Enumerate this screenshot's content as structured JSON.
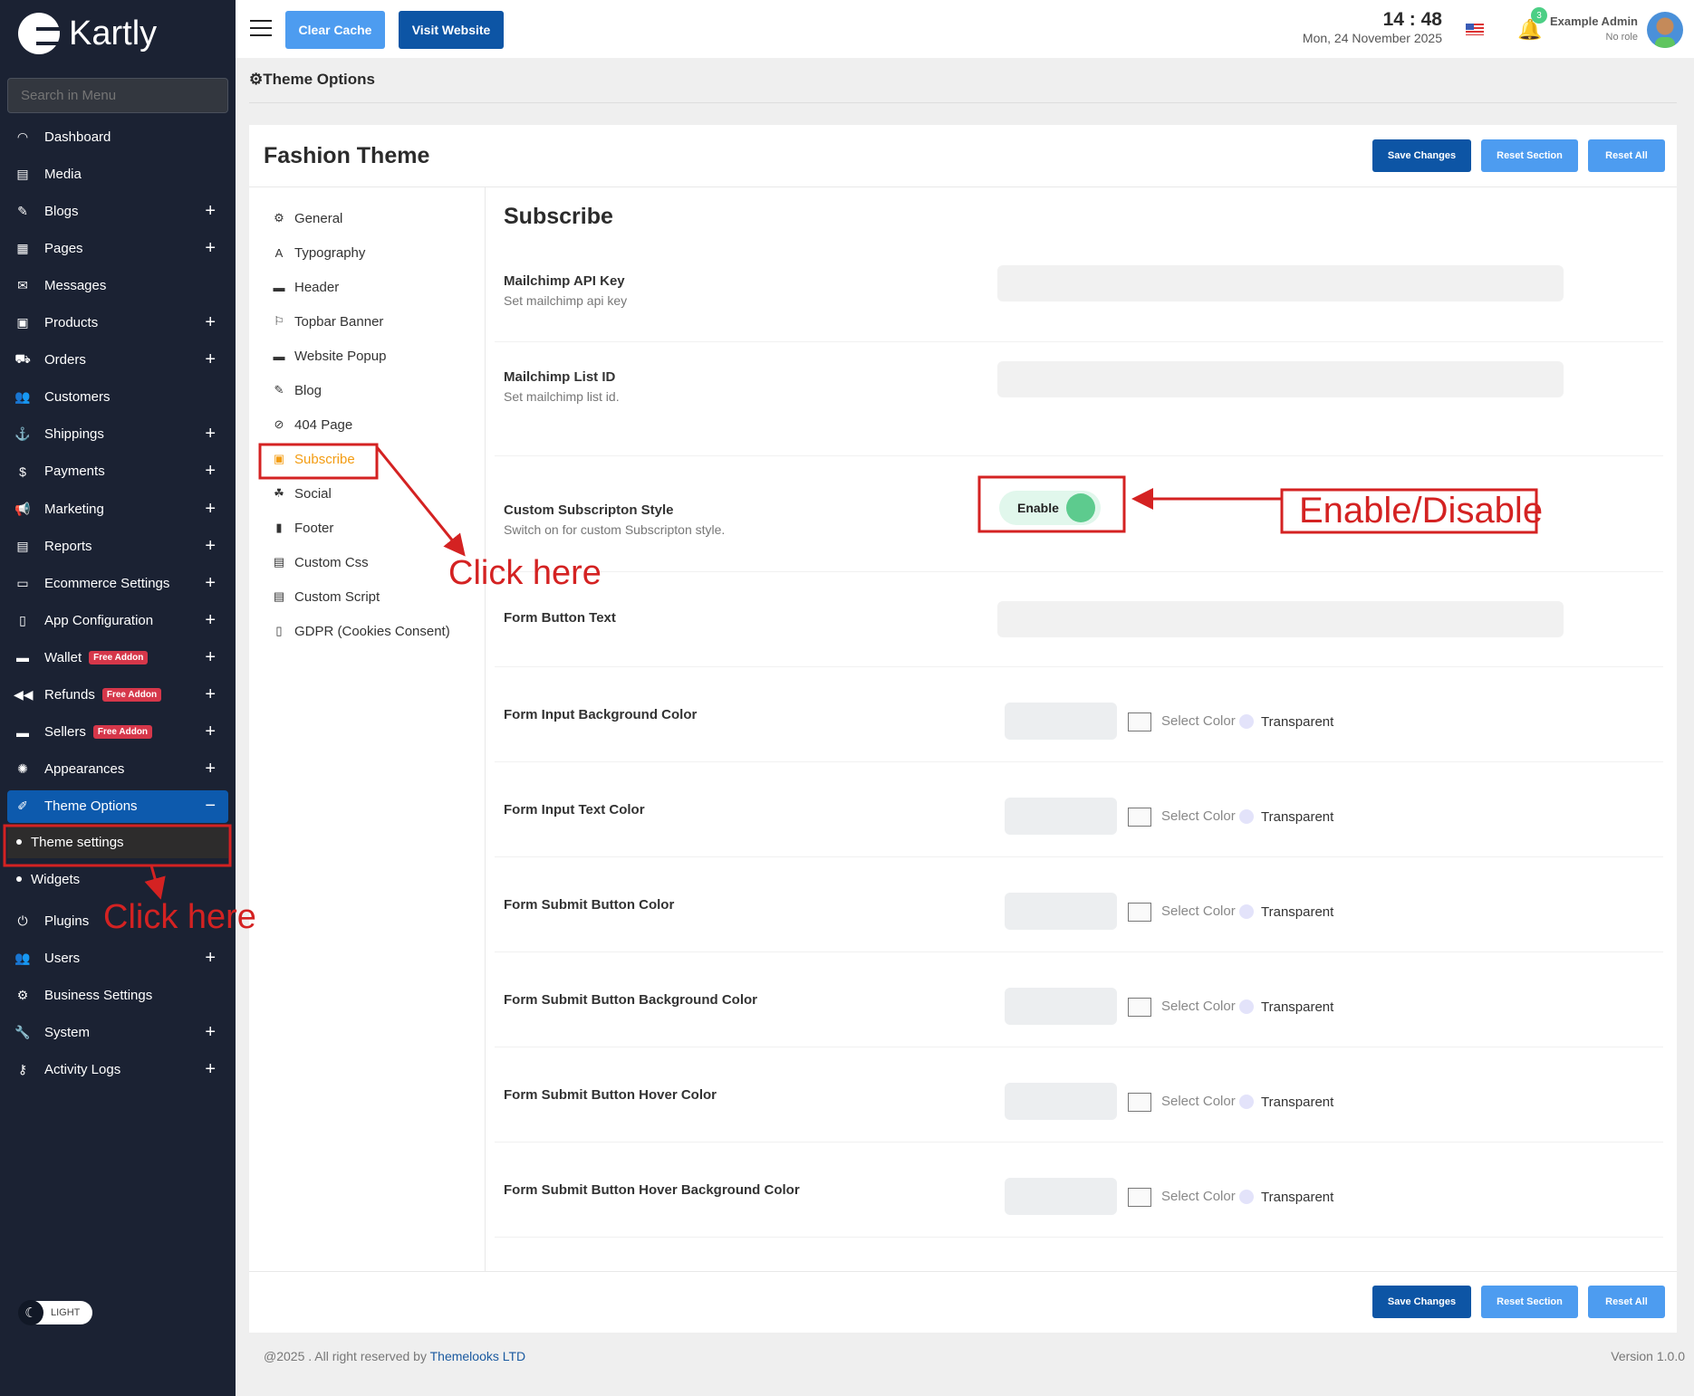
{
  "brand": {
    "name": "Kartly"
  },
  "sidebar": {
    "search_placeholder": "Search in Menu",
    "items": [
      {
        "label": "Dashboard",
        "icon": "◠",
        "plus": false
      },
      {
        "label": "Media",
        "icon": "▤",
        "plus": false
      },
      {
        "label": "Blogs",
        "icon": "✎",
        "plus": true
      },
      {
        "label": "Pages",
        "icon": "▦",
        "plus": true
      },
      {
        "label": "Messages",
        "icon": "✉",
        "plus": false
      },
      {
        "label": "Products",
        "icon": "▣",
        "plus": true
      },
      {
        "label": "Orders",
        "icon": "⛟",
        "plus": true
      },
      {
        "label": "Customers",
        "icon": "👥",
        "plus": false
      },
      {
        "label": "Shippings",
        "icon": "⚓",
        "plus": true
      },
      {
        "label": "Payments",
        "icon": "$",
        "plus": true
      },
      {
        "label": "Marketing",
        "icon": "📢",
        "plus": true
      },
      {
        "label": "Reports",
        "icon": "▤",
        "plus": true
      },
      {
        "label": "Ecommerce Settings",
        "icon": "▭",
        "plus": true
      },
      {
        "label": "App Configuration",
        "icon": "▯",
        "plus": true
      },
      {
        "label": "Wallet",
        "icon": "▬",
        "plus": true,
        "badge": "Free Addon"
      },
      {
        "label": "Refunds",
        "icon": "◀◀",
        "plus": true,
        "badge": "Free Addon"
      },
      {
        "label": "Sellers",
        "icon": "▬",
        "plus": true,
        "badge": "Free Addon"
      },
      {
        "label": "Appearances",
        "icon": "✺",
        "plus": true
      },
      {
        "label": "Theme Options",
        "icon": "✐",
        "plus": false,
        "minus": "−"
      }
    ],
    "sub_items": [
      "Theme settings",
      "Widgets"
    ],
    "items_after": [
      {
        "label": "Plugins",
        "icon": "⏻",
        "plus": false
      },
      {
        "label": "Users",
        "icon": "👥",
        "plus": true
      },
      {
        "label": "Business Settings",
        "icon": "⚙",
        "plus": false
      },
      {
        "label": "System",
        "icon": "🔧",
        "plus": true
      },
      {
        "label": "Activity Logs",
        "icon": "⚷",
        "plus": true
      }
    ],
    "mode_label": "LIGHT"
  },
  "topbar": {
    "clear_cache": "Clear Cache",
    "visit_website": "Visit Website",
    "time": "14 : 48",
    "date": "Mon, 24 November 2025",
    "notifications": "3",
    "user_name": "Example Admin",
    "user_role": "No role"
  },
  "breadcrumb": "Theme Options",
  "card": {
    "title": "Fashion Theme",
    "save": "Save Changes",
    "reset_section": "Reset Section",
    "reset_all": "Reset All",
    "nav": [
      {
        "label": "General",
        "icon": "⚙"
      },
      {
        "label": "Typography",
        "icon": "A"
      },
      {
        "label": "Header",
        "icon": "▬"
      },
      {
        "label": "Topbar Banner",
        "icon": "⚐"
      },
      {
        "label": "Website Popup",
        "icon": "▬"
      },
      {
        "label": "Blog",
        "icon": "✎"
      },
      {
        "label": "404 Page",
        "icon": "⊘"
      },
      {
        "label": "Subscribe",
        "icon": "▣",
        "active": true
      },
      {
        "label": "Social",
        "icon": "☘"
      },
      {
        "label": "Footer",
        "icon": "▮"
      },
      {
        "label": "Custom Css",
        "icon": "▤"
      },
      {
        "label": "Custom Script",
        "icon": "▤"
      },
      {
        "label": "GDPR (Cookies Consent)",
        "icon": "▯"
      }
    ],
    "section_title": "Subscribe",
    "fields": [
      {
        "label": "Mailchimp API Key",
        "hint": "Set mailchimp api key",
        "type": "text",
        "value": ""
      },
      {
        "label": "Mailchimp List ID",
        "hint": "Set mailchimp list id.",
        "type": "text",
        "value": ""
      },
      {
        "label": "Custom Subscripton Style",
        "hint": "Switch on for custom Subscripton style.",
        "type": "toggle",
        "value": "Enable",
        "on": true
      },
      {
        "label": "Form Button Text",
        "type": "text",
        "value": ""
      },
      {
        "label": "Form Input Background Color",
        "type": "color"
      },
      {
        "label": "Form Input Text Color",
        "type": "color"
      },
      {
        "label": "Form Submit Button Color",
        "type": "color"
      },
      {
        "label": "Form Submit Button Background Color",
        "type": "color"
      },
      {
        "label": "Form Submit Button Hover Color",
        "type": "color"
      },
      {
        "label": "Form Submit Button Hover Background Color",
        "type": "color"
      }
    ],
    "color_select": "Select Color",
    "color_transparent": "Transparent"
  },
  "footer": {
    "copyright": "@2025 . All right reserved by ",
    "company": "Themelooks LTD",
    "version": "Version 1.0.0"
  },
  "annotations": {
    "click_here_1": "Click here",
    "click_here_2": "Click here",
    "toggle_note": "Enable/Disable",
    "color": "#d42222"
  },
  "colors": {
    "sidebar": "#1b2233",
    "primary": "#0d55a5",
    "primary_light": "#4d9cf0",
    "active_nav": "#f39c12",
    "badge": "#d6374a",
    "toggle_on": "#5dcb8e"
  }
}
